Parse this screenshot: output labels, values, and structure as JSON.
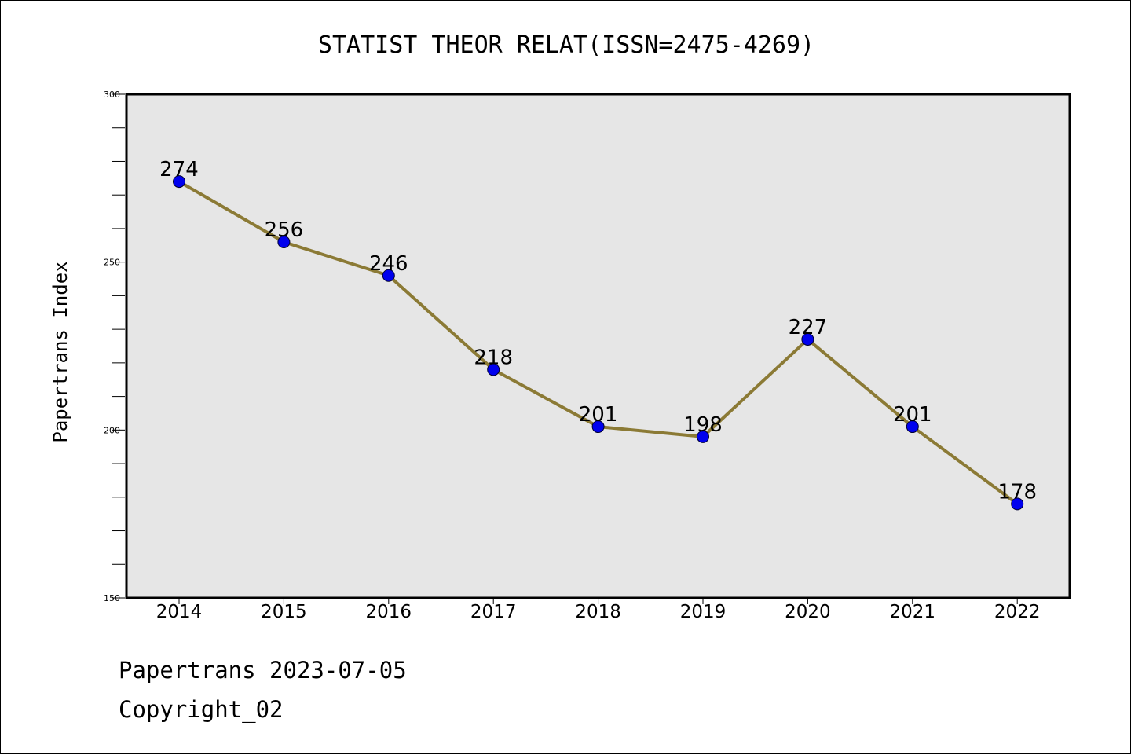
{
  "chart_data": {
    "type": "line",
    "title": "STATIST THEOR RELAT(ISSN=2475-4269)",
    "xlabel": "",
    "ylabel": "Papertrans Index",
    "categories": [
      "2014",
      "2015",
      "2016",
      "2017",
      "2018",
      "2019",
      "2020",
      "2021",
      "2022"
    ],
    "values": [
      274,
      256,
      246,
      218,
      201,
      198,
      227,
      201,
      178
    ],
    "ylim": [
      150,
      300
    ],
    "yticks": [
      "150",
      "200",
      "250",
      "300"
    ],
    "grid": false,
    "colors": {
      "line": "#8B7A35",
      "marker": "#0000EE",
      "plot_background": "#E6E6E6"
    }
  },
  "footer": {
    "line1": "Papertrans 2023-07-05",
    "line2": "Copyright_02"
  }
}
